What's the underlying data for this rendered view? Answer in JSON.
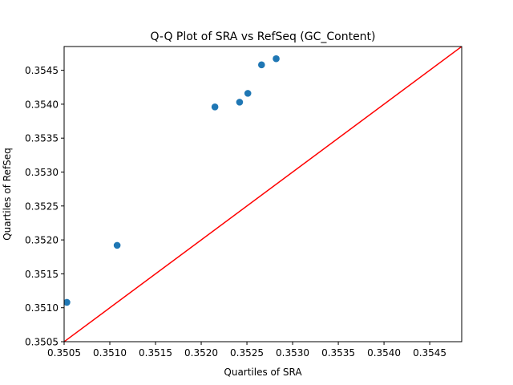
{
  "chart_data": {
    "type": "scatter",
    "title": "Q-Q Plot of SRA vs RefSeq (GC_Content)",
    "xlabel": "Quartiles of SRA",
    "ylabel": "Quartiles of RefSeq",
    "xlim": [
      0.3505,
      0.35485
    ],
    "ylim": [
      0.3505,
      0.35485
    ],
    "xticks": [
      0.3505,
      0.351,
      0.3515,
      0.352,
      0.3525,
      0.353,
      0.3535,
      0.354,
      0.3545
    ],
    "xtick_labels": [
      "0.3505",
      "0.3510",
      "0.3515",
      "0.3520",
      "0.3525",
      "0.3530",
      "0.3535",
      "0.3540",
      "0.3545"
    ],
    "yticks": [
      0.3505,
      0.351,
      0.3515,
      0.352,
      0.3525,
      0.353,
      0.3535,
      0.354,
      0.3545
    ],
    "ytick_labels": [
      "0.3505",
      "0.3510",
      "0.3515",
      "0.3520",
      "0.3525",
      "0.3530",
      "0.3535",
      "0.3540",
      "0.3545"
    ],
    "grid": false,
    "series": [
      {
        "type": "scatter",
        "color": "#1f77b4",
        "points": [
          {
            "x": 0.35053,
            "y": 0.35108
          },
          {
            "x": 0.35108,
            "y": 0.35192
          },
          {
            "x": 0.35215,
            "y": 0.35396
          },
          {
            "x": 0.35242,
            "y": 0.35403
          },
          {
            "x": 0.35251,
            "y": 0.35416
          },
          {
            "x": 0.35266,
            "y": 0.35458
          },
          {
            "x": 0.35282,
            "y": 0.35467
          }
        ]
      },
      {
        "type": "line",
        "color": "#ff0000",
        "points": [
          {
            "x": 0.3505,
            "y": 0.3505
          },
          {
            "x": 0.35485,
            "y": 0.35485
          }
        ]
      }
    ]
  }
}
